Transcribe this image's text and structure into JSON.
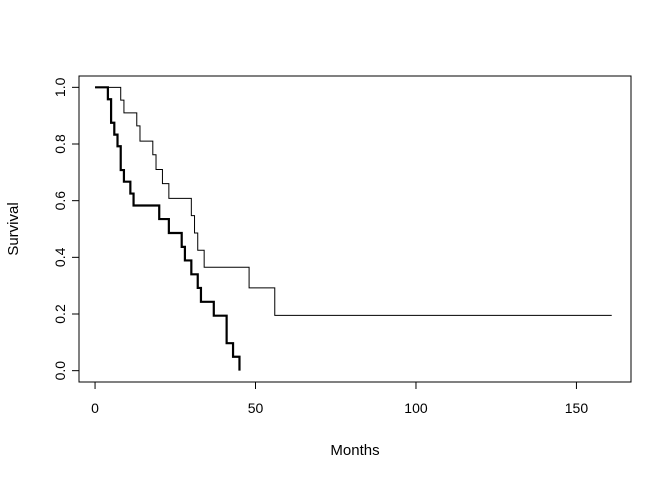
{
  "chart_data": {
    "type": "line",
    "title": "",
    "xlabel": "Months",
    "ylabel": "Survival",
    "xlim": [
      -5,
      167
    ],
    "ylim": [
      -0.04,
      1.04
    ],
    "x_ticks": [
      0,
      50,
      100,
      150
    ],
    "y_ticks": [
      0.0,
      0.2,
      0.4,
      0.6,
      0.8,
      1.0
    ],
    "x_tick_labels": [
      "0",
      "50",
      "100",
      "150"
    ],
    "y_tick_labels": [
      "0.0",
      "0.2",
      "0.4",
      "0.6",
      "0.8",
      "1.0"
    ],
    "grid": false,
    "legend": "none",
    "series": [
      {
        "style": "thin",
        "color": "#000000",
        "points": [
          [
            0,
            1.0
          ],
          [
            8,
            1.0
          ],
          [
            8,
            0.955
          ],
          [
            9,
            0.955
          ],
          [
            9,
            0.91
          ],
          [
            13,
            0.91
          ],
          [
            13,
            0.864
          ],
          [
            14,
            0.864
          ],
          [
            14,
            0.81
          ],
          [
            18,
            0.81
          ],
          [
            18,
            0.762
          ],
          [
            19,
            0.762
          ],
          [
            19,
            0.71
          ],
          [
            21,
            0.71
          ],
          [
            21,
            0.66
          ],
          [
            23,
            0.66
          ],
          [
            23,
            0.608
          ],
          [
            30,
            0.608
          ],
          [
            30,
            0.547
          ],
          [
            31,
            0.547
          ],
          [
            31,
            0.486
          ],
          [
            32,
            0.486
          ],
          [
            32,
            0.425
          ],
          [
            34,
            0.425
          ],
          [
            34,
            0.365
          ],
          [
            48,
            0.365
          ],
          [
            48,
            0.292
          ],
          [
            56,
            0.292
          ],
          [
            56,
            0.195
          ],
          [
            161,
            0.195
          ]
        ]
      },
      {
        "style": "thick",
        "color": "#000000",
        "points": [
          [
            0,
            1.0
          ],
          [
            4,
            1.0
          ],
          [
            4,
            0.958
          ],
          [
            5,
            0.958
          ],
          [
            5,
            0.875
          ],
          [
            6,
            0.875
          ],
          [
            6,
            0.833
          ],
          [
            7,
            0.833
          ],
          [
            7,
            0.792
          ],
          [
            8,
            0.792
          ],
          [
            8,
            0.708
          ],
          [
            9,
            0.708
          ],
          [
            9,
            0.667
          ],
          [
            11,
            0.667
          ],
          [
            11,
            0.625
          ],
          [
            12,
            0.625
          ],
          [
            12,
            0.583
          ],
          [
            20,
            0.583
          ],
          [
            20,
            0.535
          ],
          [
            23,
            0.535
          ],
          [
            23,
            0.486
          ],
          [
            27,
            0.486
          ],
          [
            27,
            0.437
          ],
          [
            28,
            0.437
          ],
          [
            28,
            0.389
          ],
          [
            30,
            0.389
          ],
          [
            30,
            0.34
          ],
          [
            32,
            0.34
          ],
          [
            32,
            0.292
          ],
          [
            33,
            0.292
          ],
          [
            33,
            0.243
          ],
          [
            37,
            0.243
          ],
          [
            37,
            0.194
          ],
          [
            41,
            0.194
          ],
          [
            41,
            0.097
          ],
          [
            43,
            0.097
          ],
          [
            43,
            0.049
          ],
          [
            45,
            0.049
          ],
          [
            45,
            0.0
          ]
        ]
      }
    ]
  }
}
